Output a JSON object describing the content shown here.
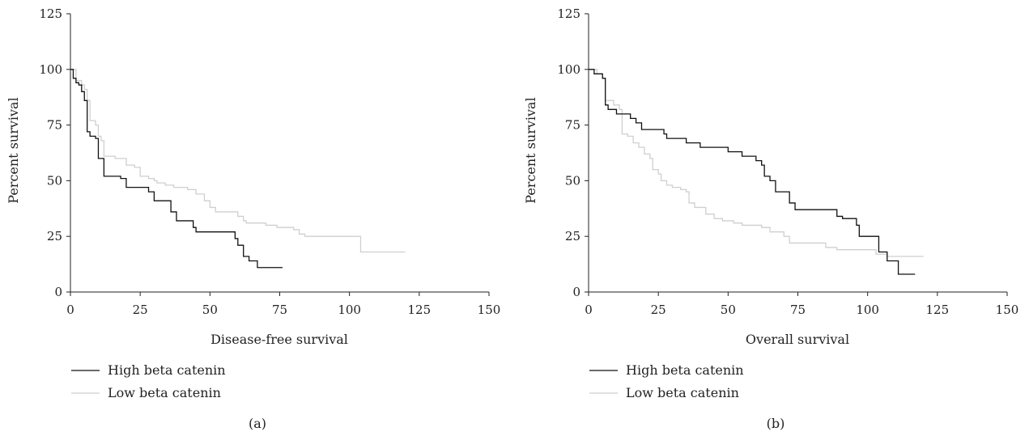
{
  "figure": {
    "panels": [
      "(a)",
      "(b)"
    ]
  },
  "colors": {
    "high": "#111111",
    "low": "#cfcfcf",
    "axis": "#222222"
  },
  "chart_data": [
    {
      "type": "line",
      "panel_label": "(a)",
      "title": "",
      "xlabel": "Disease-free survival",
      "ylabel": "Percent survival",
      "xlim": [
        0,
        150
      ],
      "ylim": [
        0,
        125
      ],
      "xticks": [
        0,
        25,
        50,
        75,
        100,
        125,
        150
      ],
      "yticks": [
        0,
        25,
        50,
        75,
        100,
        125
      ],
      "legend": [
        "High beta catenin",
        "Low beta catenin"
      ],
      "legend_position": "below-left",
      "grid": false,
      "step": true,
      "series": [
        {
          "name": "High beta catenin",
          "color": "#111111",
          "points": [
            [
              0,
              100
            ],
            [
              1,
              96
            ],
            [
              2,
              94
            ],
            [
              3,
              93
            ],
            [
              4,
              90
            ],
            [
              5,
              86
            ],
            [
              6,
              72
            ],
            [
              7,
              70
            ],
            [
              9,
              69
            ],
            [
              10,
              60
            ],
            [
              12,
              52
            ],
            [
              18,
              51
            ],
            [
              20,
              47
            ],
            [
              26,
              47
            ],
            [
              28,
              45
            ],
            [
              30,
              41
            ],
            [
              35,
              41
            ],
            [
              36,
              36
            ],
            [
              38,
              32
            ],
            [
              42,
              32
            ],
            [
              44,
              29
            ],
            [
              45,
              27
            ],
            [
              57,
              27
            ],
            [
              59,
              24
            ],
            [
              60,
              21
            ],
            [
              62,
              16
            ],
            [
              64,
              14
            ],
            [
              67,
              11
            ],
            [
              76,
              11
            ]
          ]
        },
        {
          "name": "Low beta catenin",
          "color": "#cfcfcf",
          "points": [
            [
              0,
              100
            ],
            [
              2,
              95
            ],
            [
              4,
              93
            ],
            [
              5,
              91
            ],
            [
              6,
              86
            ],
            [
              7,
              77
            ],
            [
              9,
              75
            ],
            [
              10,
              70
            ],
            [
              11,
              68
            ],
            [
              12,
              61
            ],
            [
              16,
              60
            ],
            [
              20,
              57
            ],
            [
              23,
              56
            ],
            [
              25,
              52
            ],
            [
              28,
              51
            ],
            [
              30,
              50
            ],
            [
              31,
              49
            ],
            [
              34,
              48
            ],
            [
              37,
              47
            ],
            [
              42,
              46
            ],
            [
              45,
              44
            ],
            [
              48,
              41
            ],
            [
              50,
              38
            ],
            [
              52,
              36
            ],
            [
              58,
              36
            ],
            [
              60,
              34
            ],
            [
              62,
              32
            ],
            [
              63,
              31
            ],
            [
              70,
              30
            ],
            [
              74,
              29
            ],
            [
              80,
              28
            ],
            [
              82,
              26
            ],
            [
              84,
              25
            ],
            [
              102,
              25
            ],
            [
              104,
              18
            ],
            [
              120,
              18
            ]
          ]
        }
      ]
    },
    {
      "type": "line",
      "panel_label": "(b)",
      "title": "",
      "xlabel": "Overall survival",
      "ylabel": "Percent survival",
      "xlim": [
        0,
        150
      ],
      "ylim": [
        0,
        125
      ],
      "xticks": [
        0,
        25,
        50,
        75,
        100,
        125,
        150
      ],
      "yticks": [
        0,
        25,
        50,
        75,
        100,
        125
      ],
      "legend": [
        "High beta catenin",
        "Low beta catenin"
      ],
      "legend_position": "below-left",
      "grid": false,
      "step": true,
      "series": [
        {
          "name": "High beta catenin",
          "color": "#111111",
          "points": [
            [
              0,
              100
            ],
            [
              2,
              98
            ],
            [
              5,
              96
            ],
            [
              6,
              84
            ],
            [
              7,
              82
            ],
            [
              10,
              80
            ],
            [
              13,
              80
            ],
            [
              15,
              78
            ],
            [
              17,
              76
            ],
            [
              19,
              73
            ],
            [
              23,
              73
            ],
            [
              27,
              71
            ],
            [
              28,
              69
            ],
            [
              35,
              67
            ],
            [
              38,
              67
            ],
            [
              40,
              65
            ],
            [
              42,
              65
            ],
            [
              50,
              63
            ],
            [
              55,
              61
            ],
            [
              60,
              59
            ],
            [
              62,
              57
            ],
            [
              63,
              52
            ],
            [
              65,
              50
            ],
            [
              67,
              45
            ],
            [
              70,
              45
            ],
            [
              72,
              40
            ],
            [
              74,
              37
            ],
            [
              87,
              37
            ],
            [
              89,
              34
            ],
            [
              91,
              33
            ],
            [
              96,
              30
            ],
            [
              97,
              25
            ],
            [
              102,
              25
            ],
            [
              104,
              18
            ],
            [
              107,
              14
            ],
            [
              111,
              8
            ],
            [
              117,
              8
            ]
          ]
        },
        {
          "name": "Low beta catenin",
          "color": "#cfcfcf",
          "points": [
            [
              0,
              100
            ],
            [
              3,
              98
            ],
            [
              5,
              96
            ],
            [
              6,
              86
            ],
            [
              9,
              84
            ],
            [
              11,
              82
            ],
            [
              12,
              71
            ],
            [
              14,
              70
            ],
            [
              16,
              67
            ],
            [
              18,
              65
            ],
            [
              20,
              62
            ],
            [
              22,
              60
            ],
            [
              23,
              55
            ],
            [
              25,
              53
            ],
            [
              26,
              50
            ],
            [
              28,
              48
            ],
            [
              30,
              47
            ],
            [
              33,
              46
            ],
            [
              35,
              45
            ],
            [
              36,
              40
            ],
            [
              38,
              38
            ],
            [
              42,
              35
            ],
            [
              45,
              33
            ],
            [
              48,
              32
            ],
            [
              52,
              31
            ],
            [
              55,
              30
            ],
            [
              62,
              29
            ],
            [
              65,
              27
            ],
            [
              70,
              25
            ],
            [
              72,
              22
            ],
            [
              80,
              22
            ],
            [
              85,
              20
            ],
            [
              89,
              19
            ],
            [
              100,
              19
            ],
            [
              103,
              17
            ],
            [
              107,
              16
            ],
            [
              120,
              16
            ]
          ]
        }
      ]
    }
  ]
}
